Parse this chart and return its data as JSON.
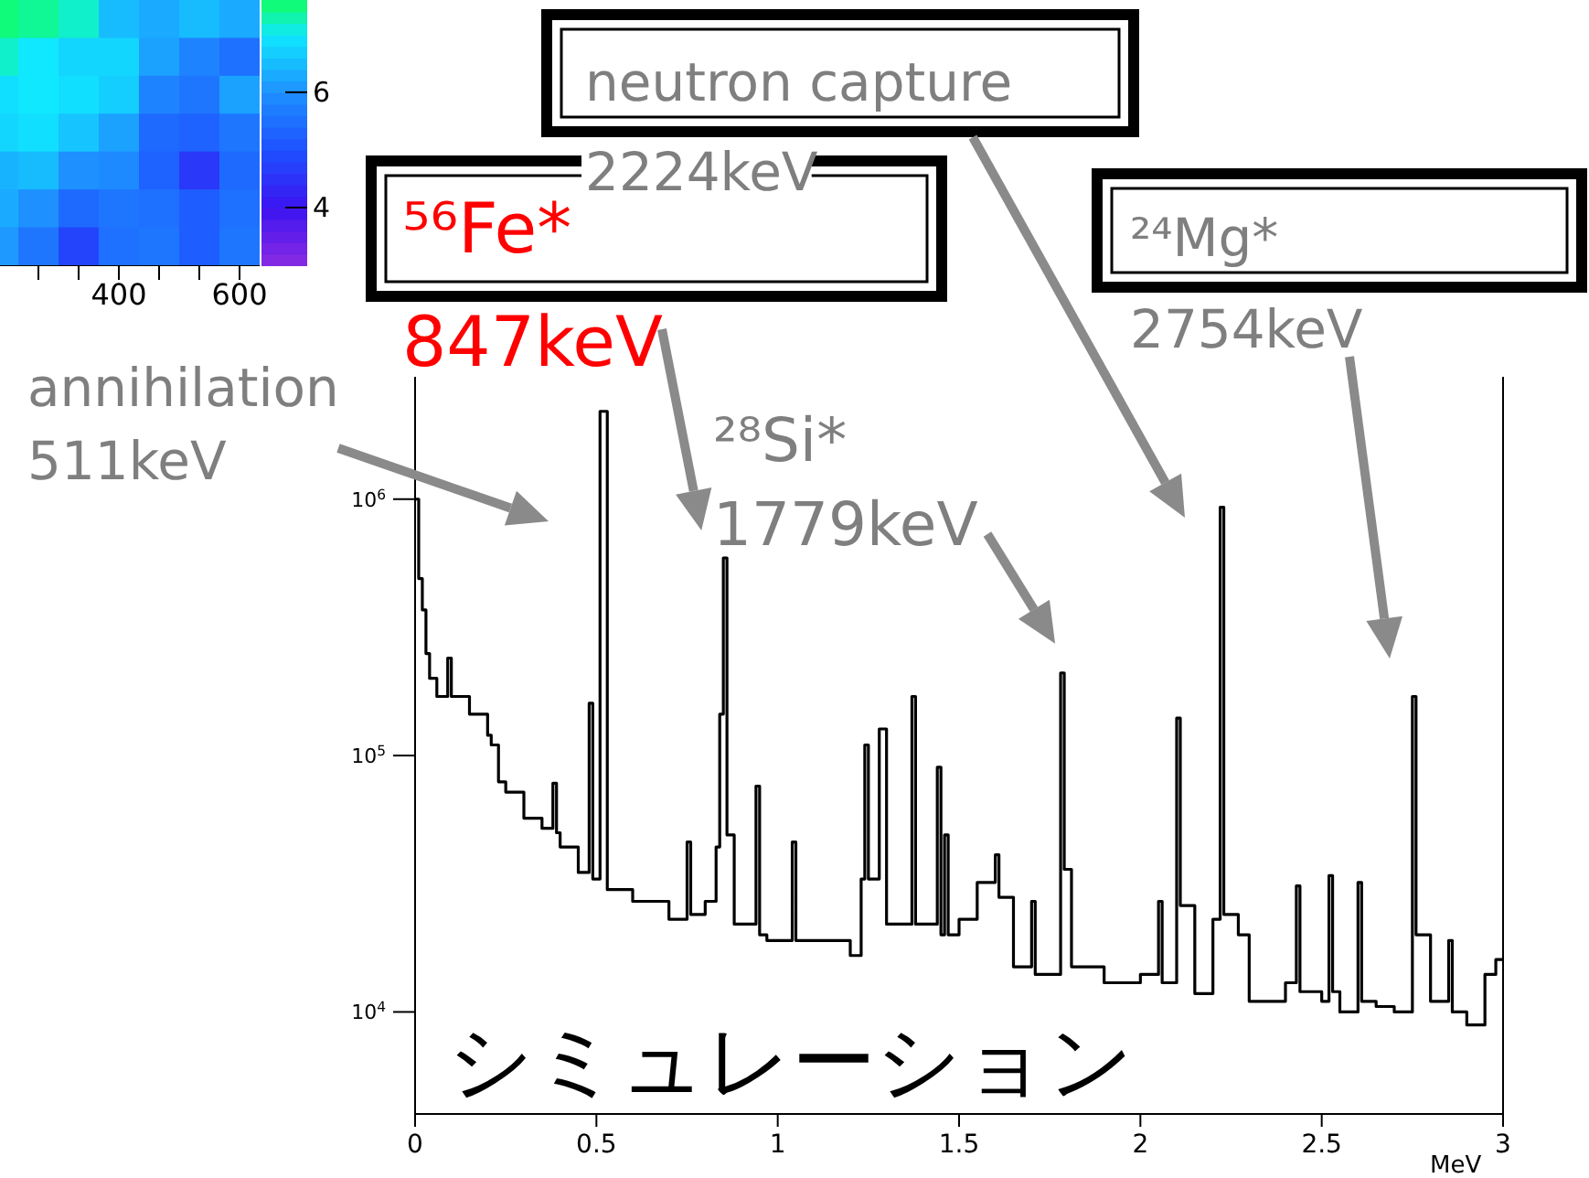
{
  "chart_data": [
    {
      "type": "heatmap",
      "categories": [
        null,
        null,
        null,
        "400",
        null,
        null,
        "600"
      ],
      "y_categories": [
        null,
        null,
        null,
        null,
        null,
        null,
        null
      ],
      "cells": [
        [
          7.5,
          7.4,
          7.2,
          6.5,
          6.3,
          6.5,
          6.3
        ],
        [
          7.2,
          7.0,
          6.8,
          6.8,
          6.2,
          5.8,
          5.5
        ],
        [
          6.9,
          7.0,
          6.9,
          6.7,
          5.8,
          5.6,
          6.2
        ],
        [
          6.8,
          6.9,
          6.6,
          6.2,
          5.4,
          5.3,
          5.6
        ],
        [
          6.4,
          6.5,
          6.0,
          5.9,
          5.3,
          4.6,
          5.4
        ],
        [
          6.3,
          6.0,
          5.4,
          5.6,
          5.5,
          5.2,
          5.5
        ],
        [
          6.1,
          5.6,
          4.8,
          5.5,
          5.6,
          5.2,
          5.6
        ]
      ],
      "clim": [
        3,
        7.6
      ],
      "cticks": [
        4,
        6
      ],
      "tick_labels": "x"
    },
    {
      "type": "step",
      "color": "#000000",
      "xlabel": "MeV",
      "log": true,
      "x": [
        0,
        0.01,
        0.02,
        0.03,
        0.04,
        0.06,
        0.09,
        0.1,
        0.15,
        0.2,
        0.21,
        0.23,
        0.25,
        0.3,
        0.35,
        0.38,
        0.39,
        0.4,
        0.45,
        0.48,
        0.49,
        0.51,
        0.53,
        0.6,
        0.7,
        0.75,
        0.76,
        0.8,
        0.83,
        0.84,
        0.85,
        0.86,
        0.88,
        0.94,
        0.95,
        0.97,
        1.04,
        1.05,
        1.1,
        1.2,
        1.23,
        1.24,
        1.25,
        1.28,
        1.3,
        1.37,
        1.38,
        1.44,
        1.45,
        1.46,
        1.47,
        1.5,
        1.55,
        1.6,
        1.61,
        1.65,
        1.7,
        1.71,
        1.75,
        1.78,
        1.79,
        1.81,
        1.9,
        2.0,
        2.05,
        2.06,
        2.1,
        2.11,
        2.15,
        2.2,
        2.22,
        2.23,
        2.27,
        2.3,
        2.4,
        2.43,
        2.44,
        2.5,
        2.52,
        2.53,
        2.55,
        2.6,
        2.61,
        2.65,
        2.7,
        2.75,
        2.76,
        2.8,
        2.85,
        2.86,
        2.9,
        2.95,
        2.98,
        3.0
      ],
      "values": [
        1000000,
        490000,
        370000,
        250000,
        200000,
        170000,
        240000,
        170000,
        145000,
        120000,
        110000,
        79000,
        72000,
        57000,
        52000,
        78000,
        50000,
        44000,
        35000,
        160000,
        33000,
        2200000,
        30000,
        27000,
        23000,
        46000,
        24000,
        27000,
        44000,
        145000,
        590000,
        49000,
        22000,
        76000,
        20000,
        19000,
        46000,
        19000,
        19000,
        16600,
        33000,
        110000,
        33000,
        127000,
        22000,
        170000,
        22000,
        90000,
        20000,
        49000,
        20000,
        23000,
        32000,
        41000,
        28000,
        15000,
        27000,
        14000,
        14000,
        210000,
        36000,
        15000,
        13000,
        14000,
        27000,
        13000,
        140000,
        26000,
        11800,
        23000,
        930000,
        24000,
        20000,
        11000,
        13000,
        31000,
        12000,
        11000,
        34000,
        12000,
        10000,
        32000,
        11000,
        10500,
        10000,
        170000,
        20000,
        11000,
        19000,
        10000,
        8900,
        14000,
        16000,
        16000
      ],
      "xlim": [
        0,
        3
      ],
      "xticks": [
        0,
        0.5,
        1,
        1.5,
        2,
        2.5,
        3
      ],
      "ylim": [
        4000,
        3000000
      ],
      "yticks": [
        {
          "value": 10000,
          "label": "10$^{4}$"
        },
        {
          "value": 100000,
          "label": "10$^{5}$"
        },
        {
          "value": 1000000,
          "label": "10$^{6}$"
        }
      ],
      "annotations": [
        "annihilation\n511keV",
        {
          "text": "⁵⁶Fe*\n847keV",
          "x": 0.85,
          "y": 590000
        },
        {
          "text": "²⁸Si*\n1779keV",
          "x": 1.78,
          "y": 210000
        },
        "neutron capture\n2224keV",
        "²⁴Mg*\n2754keV",
        "シミュレーション"
      ]
    }
  ]
}
